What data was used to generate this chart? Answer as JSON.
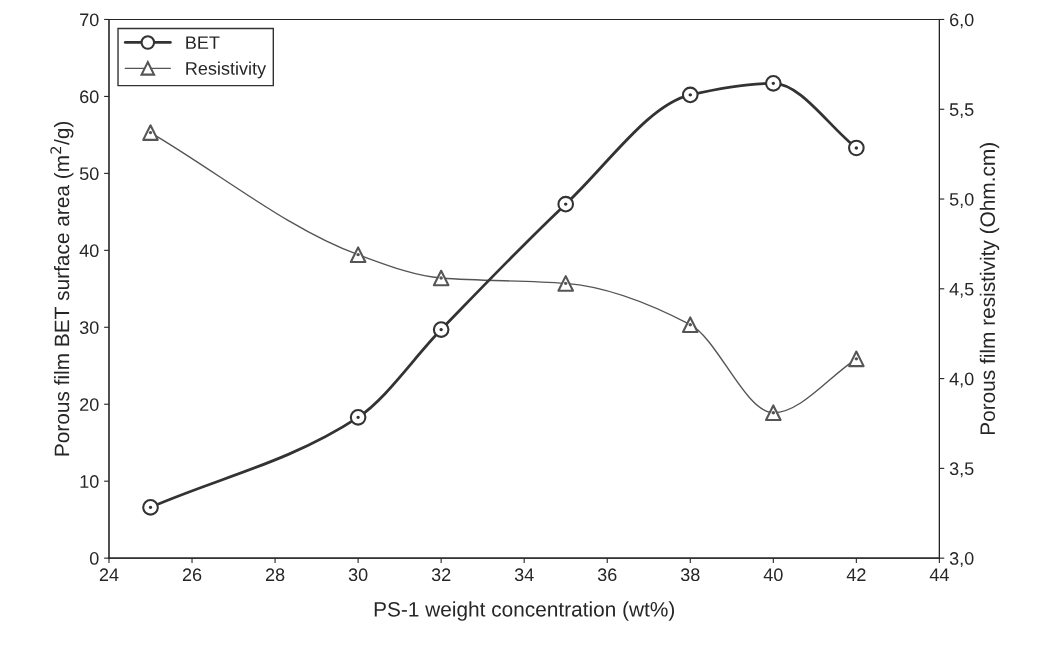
{
  "chart_data": {
    "type": "line",
    "xlabel": "PS-1 weight concentration (wt%)",
    "ylabel": "Porous film BET surface area (m$^{2}$/g)",
    "y2label": "Porous film resistivity (Ohm.cm)",
    "x": [
      25,
      30,
      32,
      35,
      38,
      40,
      42
    ],
    "series": [
      {
        "name": "BET",
        "color": "#333333",
        "values": [
          6.6,
          18.3,
          29.7,
          46.0,
          60.2,
          61.7,
          53.3
        ],
        "marker": "circle",
        "line_style": "solid"
      },
      {
        "name": "Resistivity",
        "color": "#555555",
        "values": [
          5.37,
          4.69,
          4.56,
          4.53,
          4.3,
          3.81,
          4.11
        ],
        "marker": "triangle",
        "line_style": "solid",
        "axis": "y2"
      }
    ],
    "xlim": [
      24,
      44
    ],
    "xticks": [
      24,
      26,
      28,
      30,
      32,
      34,
      36,
      38,
      40,
      42,
      44
    ],
    "ylim": [
      0,
      70
    ],
    "yticks": [
      0,
      10,
      20,
      30,
      40,
      50,
      60,
      70
    ],
    "y2lim": [
      3.0,
      6.0
    ],
    "y2ticks": [
      {
        "value": 3.0,
        "label": "3,0"
      },
      {
        "value": 3.5,
        "label": "3,5"
      },
      {
        "value": 4.0,
        "label": "4,0"
      },
      {
        "value": 4.5,
        "label": "4,5"
      },
      {
        "value": 5.0,
        "label": "5,0"
      },
      {
        "value": 5.5,
        "label": "5,5"
      },
      {
        "value": 6.0,
        "label": "6,0"
      }
    ],
    "grid": false,
    "legend": "top left"
  }
}
